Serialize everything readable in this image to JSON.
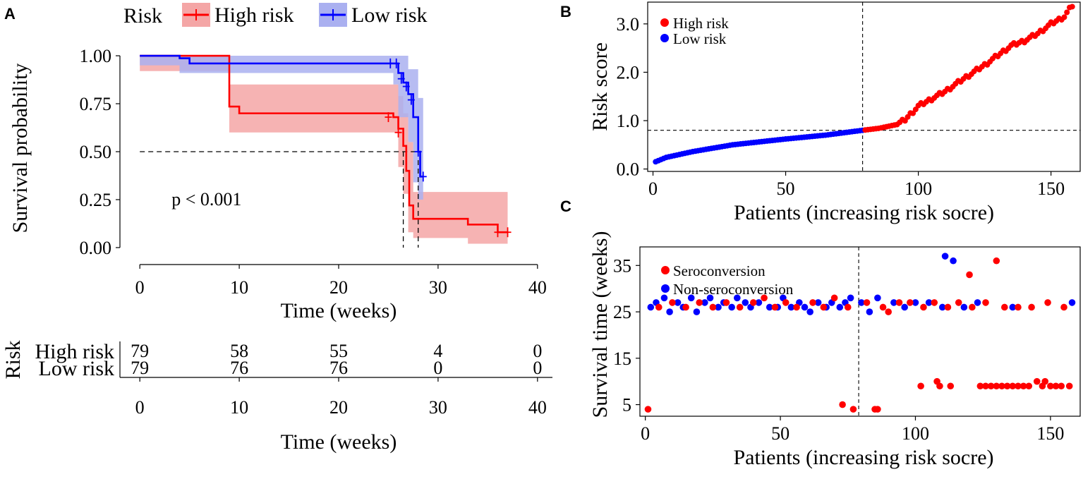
{
  "colors": {
    "high": "#ff0000",
    "low": "#0000ff",
    "high_band": "#f4a6a6",
    "low_band": "#aab0f0",
    "black": "#000000"
  },
  "chart_data": [
    {
      "id": "A",
      "panel_letter": "A",
      "type": "line",
      "title": "",
      "legend_title": "Risk",
      "legend": [
        "High risk",
        "Low risk"
      ],
      "xlabel": "Time (weeks)",
      "ylabel": "Survival probability",
      "xlim": [
        -2,
        42
      ],
      "ylim": [
        -0.07,
        1.07
      ],
      "xticks": [
        0,
        10,
        20,
        30,
        40
      ],
      "yticks": [
        "0.00",
        "0.25",
        "0.50",
        "0.75",
        "1.00"
      ],
      "annotation": "p < 0.001",
      "median_line": {
        "y": 0.5,
        "x_high": 26.5,
        "x_low": 28
      },
      "series": [
        {
          "name": "High risk",
          "color_key": "high",
          "steps": [
            [
              0,
              1.0
            ],
            [
              9,
              0.962
            ],
            [
              9,
              0.735
            ],
            [
              10,
              0.7
            ],
            [
              25.5,
              0.68
            ],
            [
              26,
              0.62
            ],
            [
              26.5,
              0.53
            ],
            [
              26.8,
              0.4
            ],
            [
              27.1,
              0.22
            ],
            [
              27.5,
              0.15
            ],
            [
              33,
              0.12
            ],
            [
              36,
              0.08
            ],
            [
              37,
              0.08
            ]
          ],
          "band_upper": [
            [
              0,
              1.0
            ],
            [
              9,
              1.0
            ],
            [
              9,
              0.85
            ],
            [
              26,
              0.79
            ],
            [
              26.5,
              0.7
            ],
            [
              27,
              0.55
            ],
            [
              27.5,
              0.29
            ],
            [
              37,
              0.29
            ]
          ],
          "band_lower": [
            [
              37,
              0.02
            ],
            [
              36,
              0.02
            ],
            [
              33,
              0.05
            ],
            [
              27.5,
              0.08
            ],
            [
              27,
              0.28
            ],
            [
              26.5,
              0.42
            ],
            [
              26,
              0.6
            ],
            [
              9,
              0.6
            ],
            [
              9,
              0.92
            ],
            [
              4,
              0.92
            ],
            [
              0,
              1.0
            ]
          ],
          "censor": [
            [
              25,
              0.68
            ],
            [
              26,
              0.6
            ],
            [
              36,
              0.08
            ],
            [
              37,
              0.08
            ]
          ]
        },
        {
          "name": "Low risk",
          "color_key": "low",
          "steps": [
            [
              0,
              1.0
            ],
            [
              4,
              0.987
            ],
            [
              5,
              0.96
            ],
            [
              25.5,
              0.96
            ],
            [
              26,
              0.91
            ],
            [
              26.5,
              0.86
            ],
            [
              27,
              0.8
            ],
            [
              27.5,
              0.68
            ],
            [
              28,
              0.5
            ],
            [
              28.2,
              0.37
            ],
            [
              28.5,
              0.37
            ]
          ],
          "band_upper": [
            [
              0,
              1.0
            ],
            [
              25.5,
              1.0
            ],
            [
              27,
              0.93
            ],
            [
              28,
              0.78
            ],
            [
              28.5,
              0.58
            ]
          ],
          "band_lower": [
            [
              28.5,
              0.25
            ],
            [
              28,
              0.34
            ],
            [
              27.5,
              0.55
            ],
            [
              27,
              0.68
            ],
            [
              26,
              0.85
            ],
            [
              25.5,
              0.91
            ],
            [
              5,
              0.91
            ],
            [
              4,
              0.95
            ],
            [
              0,
              1.0
            ]
          ],
          "censor": [
            [
              25.2,
              0.96
            ],
            [
              25.8,
              0.96
            ],
            [
              26.3,
              0.88
            ],
            [
              26.8,
              0.84
            ],
            [
              27.3,
              0.77
            ],
            [
              28,
              0.5
            ],
            [
              28.5,
              0.37
            ]
          ]
        }
      ]
    },
    {
      "id": "A_risk_table",
      "type": "table",
      "ylabel": "Risk",
      "xlabel": "Time (weeks)",
      "xlim": [
        -2,
        42
      ],
      "xticks": [
        0,
        10,
        20,
        30,
        40
      ],
      "rows": [
        {
          "name": "High risk",
          "color_key": "high",
          "values": [
            "79",
            "58",
            "55",
            "4",
            "0"
          ]
        },
        {
          "name": "Low  risk",
          "color_key": "low",
          "values": [
            "79",
            "76",
            "76",
            "0",
            "0"
          ]
        }
      ]
    },
    {
      "id": "B",
      "panel_letter": "B",
      "type": "scatter",
      "title": "",
      "xlabel": "Patients (increasing risk socre)",
      "ylabel": "Risk score",
      "xlim": [
        -2,
        161
      ],
      "ylim": [
        -0.05,
        3.45
      ],
      "xticks": [
        0,
        50,
        100,
        150
      ],
      "yticks": [
        "0.0",
        "1.0",
        "2.0",
        "3.0"
      ],
      "legend": [
        "High risk",
        "Low  risk"
      ],
      "cutoff": {
        "x": 79,
        "y": 0.8
      },
      "curve_points": [
        [
          1,
          0.15
        ],
        [
          5,
          0.24
        ],
        [
          15,
          0.36
        ],
        [
          30,
          0.5
        ],
        [
          50,
          0.62
        ],
        [
          65,
          0.7
        ],
        [
          79,
          0.8
        ],
        [
          85,
          0.84
        ],
        [
          92,
          0.92
        ],
        [
          95,
          1.02
        ],
        [
          100,
          1.3
        ],
        [
          110,
          1.6
        ],
        [
          118,
          1.9
        ],
        [
          125,
          2.15
        ],
        [
          130,
          2.35
        ],
        [
          135,
          2.55
        ],
        [
          140,
          2.65
        ],
        [
          145,
          2.8
        ],
        [
          150,
          3.0
        ],
        [
          155,
          3.15
        ],
        [
          158,
          3.38
        ]
      ],
      "n_patients": 158
    },
    {
      "id": "C",
      "panel_letter": "C",
      "type": "scatter",
      "title": "",
      "xlabel": "Patients (increasing risk socre)",
      "ylabel": "Survival time (weeks)",
      "xlim": [
        -2,
        161
      ],
      "ylim": [
        2.5,
        39
      ],
      "xticks": [
        0,
        50,
        100,
        150
      ],
      "yticks": [
        "5",
        "15",
        "25",
        "35"
      ],
      "legend": [
        "Seroconversion",
        "Non-seroconversion"
      ],
      "cutoff_x": 79,
      "seroconversion": [
        [
          1,
          4
        ],
        [
          73,
          5
        ],
        [
          77,
          4
        ],
        [
          85,
          4
        ],
        [
          86,
          4
        ],
        [
          102,
          9
        ],
        [
          108,
          10
        ],
        [
          109,
          9
        ],
        [
          113,
          9
        ],
        [
          120,
          33
        ],
        [
          124,
          9
        ],
        [
          126,
          9
        ],
        [
          128,
          9
        ],
        [
          130,
          9
        ],
        [
          132,
          9
        ],
        [
          134,
          9
        ],
        [
          136,
          9
        ],
        [
          138,
          9
        ],
        [
          140,
          9
        ],
        [
          142,
          9
        ],
        [
          145,
          10
        ],
        [
          147,
          9
        ],
        [
          148,
          10
        ],
        [
          150,
          9
        ],
        [
          152,
          9
        ],
        [
          154,
          9
        ],
        [
          157,
          9
        ],
        [
          130,
          36
        ],
        [
          5,
          26
        ],
        [
          10,
          27
        ],
        [
          15,
          26
        ],
        [
          20,
          27
        ],
        [
          25,
          26
        ],
        [
          30,
          27
        ],
        [
          35,
          26
        ],
        [
          40,
          27
        ],
        [
          44,
          28
        ],
        [
          48,
          26
        ],
        [
          52,
          27
        ],
        [
          56,
          26
        ],
        [
          62,
          27
        ],
        [
          66,
          26
        ],
        [
          70,
          28
        ],
        [
          75,
          26
        ],
        [
          82,
          27
        ],
        [
          88,
          26
        ],
        [
          90,
          25
        ],
        [
          94,
          27
        ],
        [
          98,
          27
        ],
        [
          103,
          26
        ],
        [
          107,
          27
        ],
        [
          112,
          26
        ],
        [
          116,
          27
        ],
        [
          121,
          26
        ],
        [
          126,
          27
        ],
        [
          133,
          26
        ],
        [
          138,
          26
        ],
        [
          143,
          26
        ],
        [
          149,
          27
        ],
        [
          155,
          26
        ]
      ],
      "non_seroconversion": [
        [
          111,
          37
        ],
        [
          114,
          36
        ],
        [
          2,
          26
        ],
        [
          4,
          27
        ],
        [
          7,
          28
        ],
        [
          9,
          25
        ],
        [
          12,
          27
        ],
        [
          14,
          26
        ],
        [
          17,
          28
        ],
        [
          19,
          25
        ],
        [
          22,
          27
        ],
        [
          24,
          28
        ],
        [
          27,
          26
        ],
        [
          29,
          27
        ],
        [
          32,
          26
        ],
        [
          34,
          28
        ],
        [
          37,
          27
        ],
        [
          39,
          26
        ],
        [
          42,
          27
        ],
        [
          46,
          26
        ],
        [
          49,
          26
        ],
        [
          51,
          28
        ],
        [
          54,
          26
        ],
        [
          57,
          27
        ],
        [
          59,
          26
        ],
        [
          61,
          25
        ],
        [
          64,
          27
        ],
        [
          67,
          26
        ],
        [
          69,
          27
        ],
        [
          72,
          26
        ],
        [
          74,
          27
        ],
        [
          76,
          28
        ],
        [
          80,
          27
        ],
        [
          83,
          25
        ],
        [
          86,
          28
        ],
        [
          92,
          27
        ],
        [
          96,
          26
        ],
        [
          100,
          27
        ],
        [
          105,
          27
        ],
        [
          110,
          26
        ],
        [
          118,
          26
        ],
        [
          123,
          27
        ],
        [
          136,
          26
        ],
        [
          158,
          27
        ]
      ]
    }
  ]
}
